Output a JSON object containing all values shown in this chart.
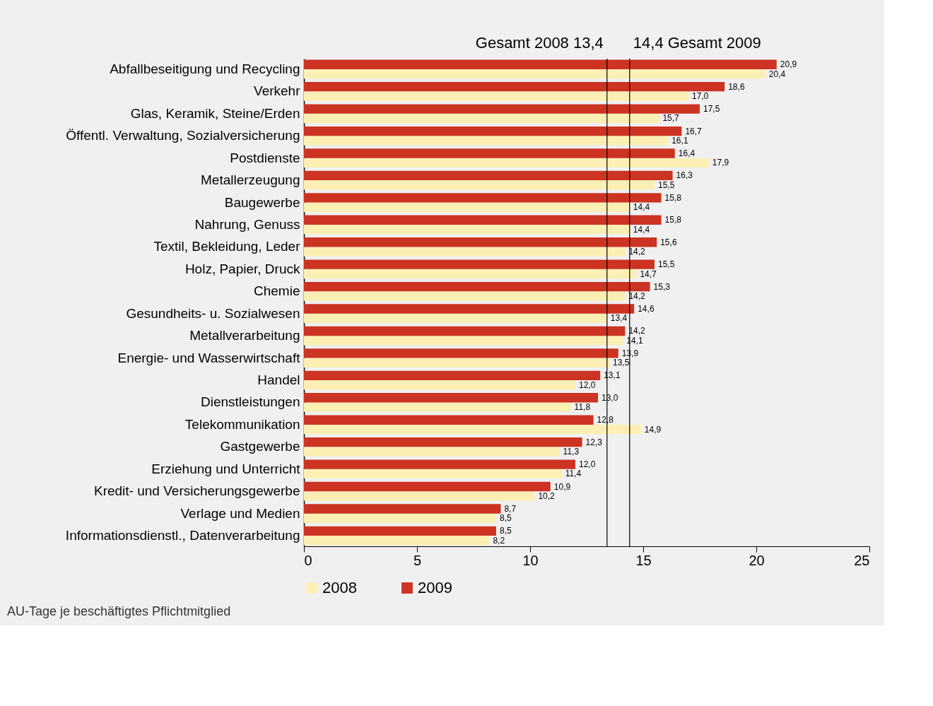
{
  "chart_data": {
    "type": "bar",
    "orientation": "horizontal",
    "categories": [
      "Abfallbeseitigung und Recycling",
      "Verkehr",
      "Glas, Keramik, Steine/Erden",
      "Öffentl. Verwaltung, Sozialversicherung",
      "Postdienste",
      "Metallerzeugung",
      "Baugewerbe",
      "Nahrung, Genuss",
      "Textil, Bekleidung, Leder",
      "Holz, Papier, Druck",
      "Chemie",
      "Gesundheits- u. Sozialwesen",
      "Metallverarbeitung",
      "Energie- und Wasserwirtschaft",
      "Handel",
      "Dienstleistungen",
      "Telekommunikation",
      "Gastgewerbe",
      "Erziehung und Unterricht",
      "Kredit- und Versicherungsgewerbe",
      "Verlage und Medien",
      "Informationsdienstl., Datenverarbeitung"
    ],
    "series": [
      {
        "name": "2008",
        "color": "#fcefb4",
        "values": [
          20.4,
          17.0,
          15.7,
          16.1,
          17.9,
          15.5,
          14.4,
          14.4,
          14.2,
          14.7,
          14.2,
          13.4,
          14.1,
          13.5,
          12.0,
          11.8,
          14.9,
          11.3,
          11.4,
          10.2,
          8.5,
          8.2
        ],
        "value_labels": [
          "20,4",
          "17,0",
          "15,7",
          "16,1",
          "17,9",
          "15,5",
          "14,4",
          "14,4",
          "14,2",
          "14,7",
          "14,2",
          "13,4",
          "14,1",
          "13,5",
          "12,0",
          "11,8",
          "14,9",
          "11,3",
          "11,4",
          "10,2",
          "8,5",
          "8,2"
        ]
      },
      {
        "name": "2009",
        "color": "#cc3322",
        "values": [
          20.9,
          18.6,
          17.5,
          16.7,
          16.4,
          16.3,
          15.8,
          15.8,
          15.6,
          15.5,
          15.3,
          14.6,
          14.2,
          13.9,
          13.1,
          13.0,
          12.8,
          12.3,
          12.0,
          10.9,
          8.7,
          8.5
        ],
        "value_labels": [
          "20,9",
          "18,6",
          "17,5",
          "16,7",
          "16,4",
          "16,3",
          "15,8",
          "15,8",
          "15,6",
          "15,5",
          "15,3",
          "14,6",
          "14,2",
          "13,9",
          "13,1",
          "13,0",
          "12,8",
          "12,3",
          "12,0",
          "10,9",
          "8,7",
          "8,5"
        ]
      }
    ],
    "xlim": [
      0,
      25
    ],
    "xticks": [
      0,
      5,
      10,
      15,
      20,
      25
    ],
    "grid": false,
    "legend": "bottom",
    "ref_lines": [
      {
        "axis": "x",
        "value": 13.4,
        "label": "Gesamt 2008 13,4"
      },
      {
        "axis": "x",
        "value": 14.4,
        "label": "14,4 Gesamt 2009"
      }
    ],
    "annotations": [
      "AU-Tage je beschäftigtes Pflichtmitglied"
    ]
  }
}
